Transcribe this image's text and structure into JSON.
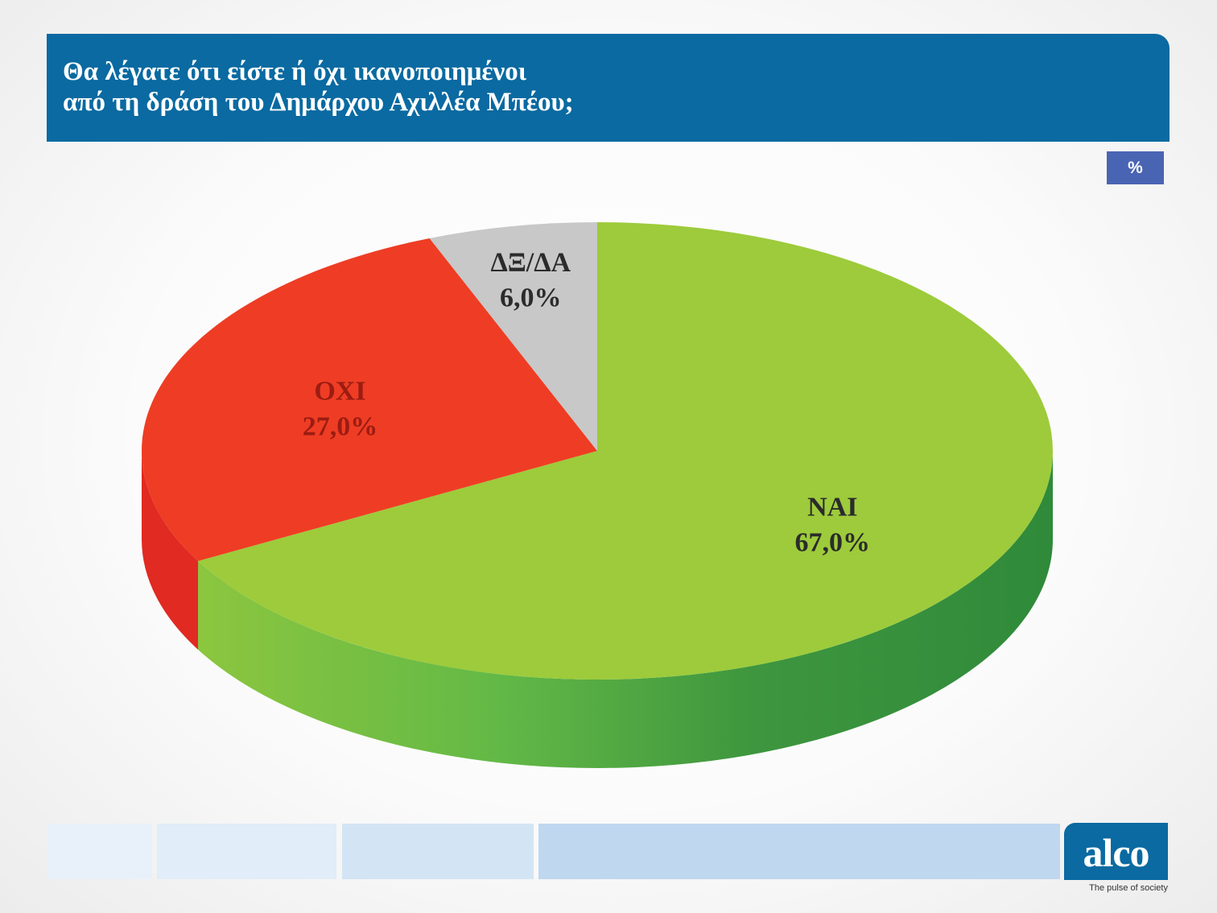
{
  "header": {
    "title_line1": "Θα λέγατε ότι είστε ή όχι ικανοποιημένοι",
    "title_line2": "από τη δράση του Δημάρχου Αχιλλέα Μπέου;",
    "unit_badge": "%"
  },
  "chart_data": {
    "type": "pie",
    "style": "3d",
    "categories": [
      "NAI",
      "OXI",
      "ΔΞ/ΔΑ"
    ],
    "values": [
      67.0,
      27.0,
      6.0
    ],
    "value_labels": [
      "67,0%",
      "27,0%",
      "6,0%"
    ],
    "colors": [
      "#9dcb3b",
      "#ee3d24",
      "#c8c8c8"
    ],
    "side_colors": [
      "#3f9a3d",
      "#e02a22",
      "#a8a8a8"
    ],
    "title": "",
    "legend": "none"
  },
  "footer": {
    "logo_text": "alco",
    "tagline": "The pulse of society",
    "bar_colors": [
      "#e8f1fa",
      "#e1edf8",
      "#d3e5f4",
      "#bfd7ef"
    ]
  }
}
